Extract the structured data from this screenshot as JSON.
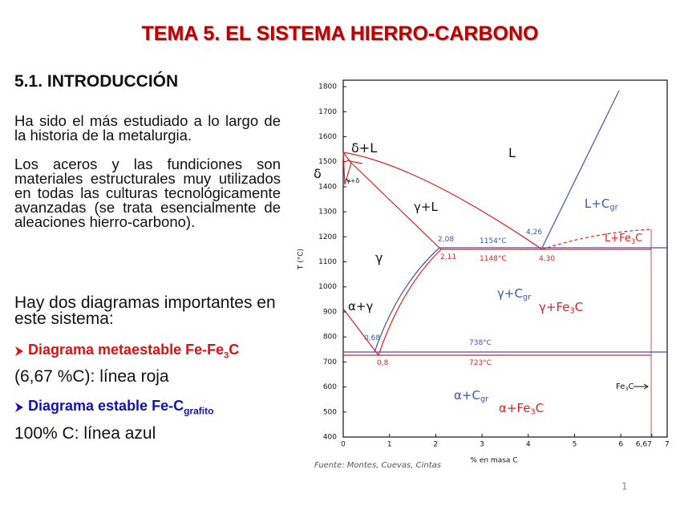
{
  "title": "TEMA 5. EL SISTEMA HIERRO-CARBONO",
  "section": "5.1. INTRODUCCIÓN",
  "paragraphs": [
    "Ha sido el más estudiado a lo largo de la historia de la metalurgia.",
    "Los aceros y las fundiciones son materiales estructurales muy utilizados en todas las culturas tecnológicamente avanzadas (se trata esencialmente de aleaciones hierro-carbono)."
  ],
  "intro": "Hay dos diagramas importantes en este sistema:",
  "items": [
    {
      "text": "Diagrama metaestable Fe-Fe",
      "sub": "3",
      "after": "C",
      "color": "#e01010",
      "note": "(6,67 %C): línea roja"
    },
    {
      "text": "Diagrama estable Fe-C",
      "sub": "grafito",
      "color": "#1010c0",
      "note": "100% C: línea azul"
    }
  ],
  "figure": {
    "yticks": [
      400,
      500,
      600,
      700,
      800,
      900,
      1000,
      1100,
      1200,
      1300,
      1400,
      1500,
      1600,
      1700,
      1800
    ],
    "xticks": [
      0,
      1,
      2,
      3,
      4,
      5,
      6,
      {
        "value": 6.67,
        "label": "6,67"
      },
      7
    ],
    "ylabel": "T (°C)",
    "xlabel": "% en masa C",
    "regions": [
      {
        "text": "δ+L",
        "color": "#111111"
      },
      {
        "text": "δ",
        "color": "#111111"
      },
      {
        "text": "γ+δ",
        "color": "#111111"
      },
      {
        "text": "L",
        "color": "#111111"
      },
      {
        "text": "γ+L",
        "color": "#111111"
      },
      {
        "text": "L+C",
        "sub": "gr",
        "color": "#3a55b0"
      },
      {
        "text": "L+Fe",
        "sub": "3",
        "after": "C",
        "color": "#e02020"
      },
      {
        "text": "γ",
        "color": "#111111"
      },
      {
        "text": "γ+C",
        "sub": "gr",
        "color": "#3a55b0"
      },
      {
        "text": "γ+Fe",
        "sub": "3",
        "after": "C",
        "color": "#e02020"
      },
      {
        "text": "α+γ",
        "color": "#111111"
      },
      {
        "text": "α+C",
        "sub": "gr",
        "color": "#3a55b0"
      },
      {
        "text": "α+Fe",
        "sub": "3",
        "after": "C",
        "color": "#e02020"
      },
      {
        "text": "Fe",
        "sub": "3",
        "after": "C",
        "color": "#111111"
      }
    ],
    "points": [
      {
        "text": "2,08",
        "color": "#3a55b0"
      },
      {
        "text": "1154°C",
        "color": "#3a55b0"
      },
      {
        "text": "2,11",
        "color": "#e02020"
      },
      {
        "text": "1148°C",
        "color": "#e02020"
      },
      {
        "text": "4,26",
        "color": "#3a55b0"
      },
      {
        "text": "4,30",
        "color": "#e02020"
      },
      {
        "text": "0,68",
        "color": "#3a55b0"
      },
      {
        "text": "738°C",
        "color": "#3a55b0"
      },
      {
        "text": "0,8",
        "color": "#e02020"
      },
      {
        "text": "723°C",
        "color": "#e02020"
      }
    ],
    "source": "Fuente: Montes, Cuevas, Cintas"
  },
  "page": 1
}
